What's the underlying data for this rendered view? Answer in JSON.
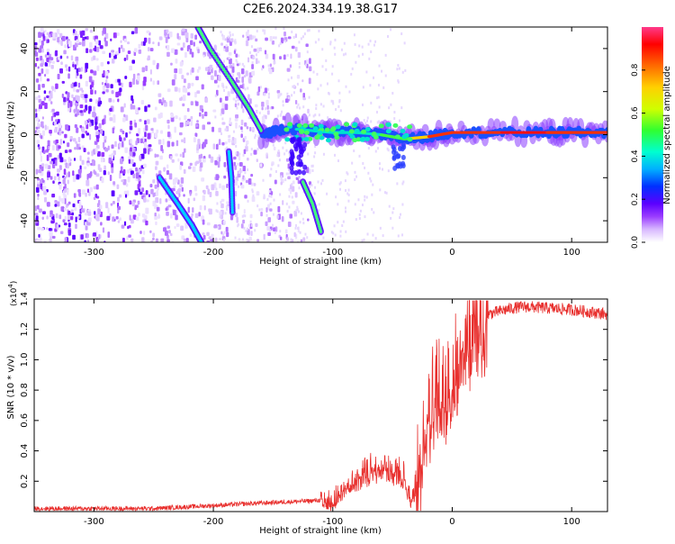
{
  "title": "C2E6.2024.334.19.38.G17",
  "colorbar": {
    "label": "Normalized spectral amplitude",
    "ticks": [
      "0.0",
      "0.2",
      "0.4",
      "0.6",
      "0.8"
    ],
    "tick_values": [
      0.0,
      0.2,
      0.4,
      0.6,
      0.8
    ],
    "range": [
      0,
      1
    ],
    "colors": [
      "#ffffff",
      "#d8b8ff",
      "#9a3cff",
      "#5a00ff",
      "#0030ff",
      "#00b0ff",
      "#00ffd0",
      "#30ff30",
      "#d0ff00",
      "#ffd000",
      "#ff6a00",
      "#ff0000",
      "#ff3a8a"
    ]
  },
  "chart_data": [
    {
      "type": "heatmap",
      "title": "C2E6.2024.334.19.38.G17",
      "xlabel": "Height of straight line (km)",
      "ylabel": "Frequency (Hz)",
      "xlim": [
        -350,
        130
      ],
      "ylim": [
        -50,
        50
      ],
      "xticks": [
        -300,
        -200,
        -100,
        0,
        100
      ],
      "xtick_labels": [
        "-300",
        "-200",
        "-100",
        "0",
        "100"
      ],
      "yticks": [
        -40,
        -20,
        0,
        20,
        40
      ],
      "ytick_labels": [
        "-40",
        "-20",
        "0",
        "20",
        "40"
      ],
      "features": [
        {
          "name": "main-signal-band",
          "x": [
            -160,
            -140,
            -120,
            -100,
            -80,
            -60,
            -40,
            -20,
            0,
            40,
            80,
            100,
            130
          ],
          "y": [
            0,
            3,
            2,
            1,
            1,
            0,
            -2,
            -1,
            1,
            1,
            1,
            1,
            1
          ]
        },
        {
          "name": "descending-streak-1",
          "x": [
            -213,
            -203,
            -185,
            -170,
            -160
          ],
          "y": [
            50,
            40,
            25,
            12,
            2
          ]
        },
        {
          "name": "descending-streak-2",
          "x": [
            -245,
            -230,
            -218,
            -210
          ],
          "y": [
            -20,
            -32,
            -42,
            -50
          ]
        },
        {
          "name": "descending-streak-3",
          "x": [
            -125,
            -117,
            -110
          ],
          "y": [
            -22,
            -32,
            -45
          ]
        },
        {
          "name": "descending-streak-4",
          "x": [
            -187,
            -185,
            -184
          ],
          "y": [
            -8,
            -20,
            -36
          ]
        }
      ]
    },
    {
      "type": "line",
      "xlabel": "Height of straight line (km)",
      "ylabel": "SNR (10 * v/v)",
      "y_multiplier": "(x10",
      "y_multiplier_exp": "4",
      "y_multiplier_close": ")",
      "xlim": [
        -350,
        130
      ],
      "ylim": [
        0,
        1.4
      ],
      "xticks": [
        -300,
        -200,
        -100,
        0,
        100
      ],
      "xtick_labels": [
        "-300",
        "-200",
        "-100",
        "0",
        "100"
      ],
      "yticks": [
        0.2,
        0.4,
        0.6,
        0.8,
        1.0,
        1.2,
        1.4
      ],
      "ytick_labels": [
        "0.2",
        "0.4",
        "0.6",
        "0.8",
        "1.0",
        "1.2",
        "1.4"
      ],
      "series": [
        {
          "name": "SNR",
          "color": "#e8302e",
          "x": [
            -350,
            -300,
            -250,
            -200,
            -150,
            -120,
            -100,
            -90,
            -80,
            -70,
            -60,
            -50,
            -40,
            -35,
            -30,
            -25,
            -20,
            -15,
            -10,
            -5,
            0,
            5,
            10,
            20,
            30,
            40,
            50,
            60,
            80,
            100,
            120,
            130
          ],
          "y": [
            0.02,
            0.02,
            0.02,
            0.04,
            0.06,
            0.07,
            0.08,
            0.18,
            0.23,
            0.28,
            0.32,
            0.28,
            0.26,
            0.08,
            0.2,
            0.45,
            0.7,
            0.8,
            0.85,
            0.78,
            0.95,
            1.05,
            1.15,
            1.25,
            1.3,
            1.32,
            1.34,
            1.35,
            1.34,
            1.33,
            1.31,
            1.3
          ]
        }
      ]
    }
  ]
}
